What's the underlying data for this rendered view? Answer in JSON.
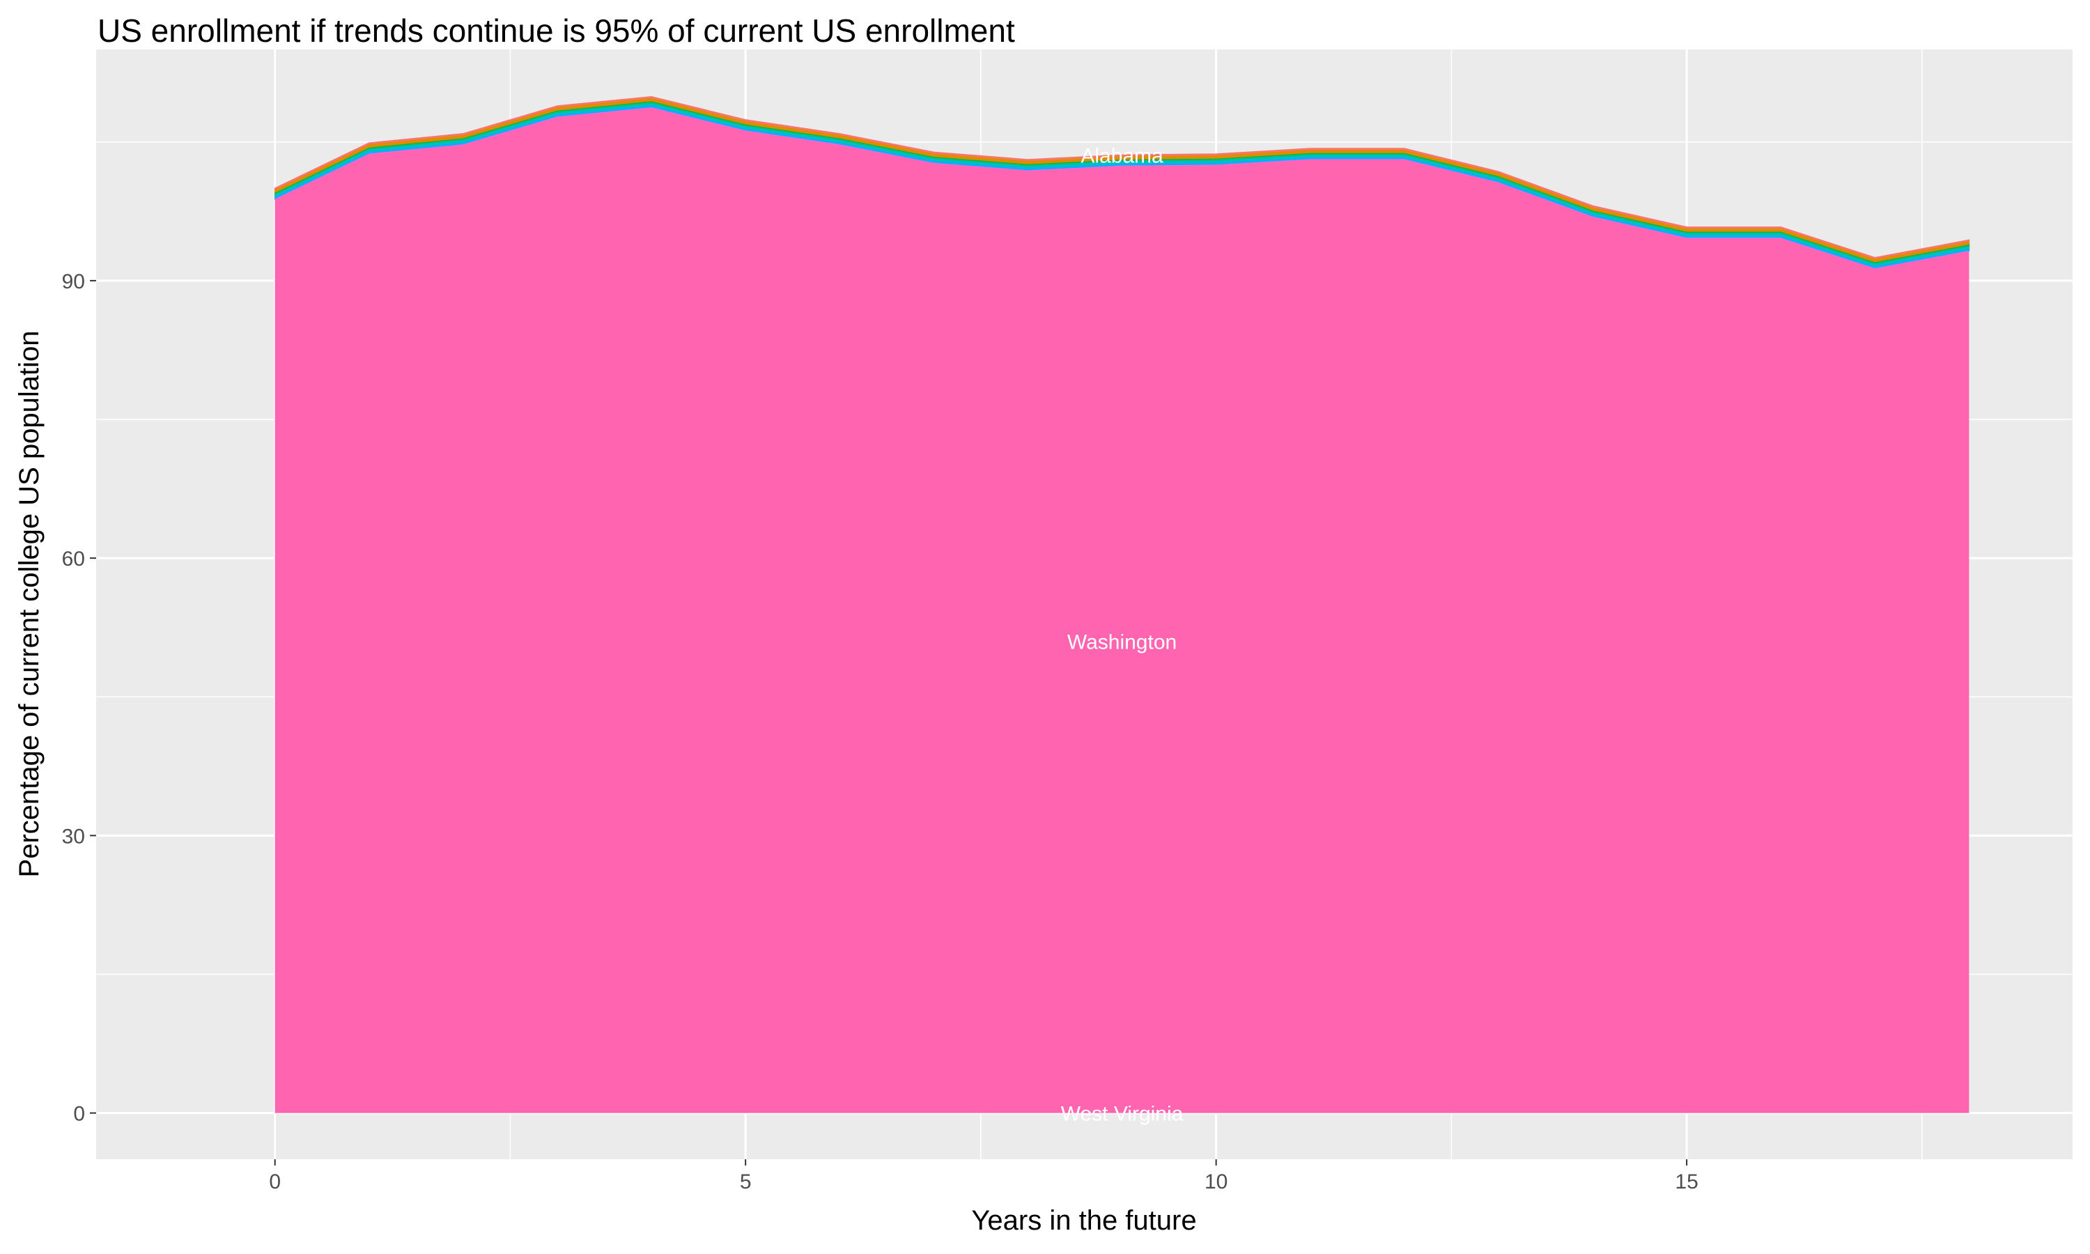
{
  "chart_data": {
    "type": "area",
    "stacked": true,
    "title": "US enrollment if trends continue is 95% of current US enrollment",
    "xlabel": "Years in the future",
    "ylabel": "Percentage of current college US population",
    "x": [
      0,
      1,
      2,
      3,
      4,
      5,
      6,
      7,
      8,
      9,
      10,
      11,
      12,
      13,
      14,
      15,
      16,
      17,
      18
    ],
    "xlim": [
      -1.9,
      19.1
    ],
    "ylim": [
      -5,
      115
    ],
    "xticks": [
      0,
      5,
      10,
      15
    ],
    "yticks": [
      0,
      30,
      60,
      90
    ],
    "grid": true,
    "legend": "none",
    "background": "#EBEBEB",
    "series": [
      {
        "name": "Washington",
        "color": "#FF64B0",
        "values": [
          98.8,
          103.7,
          104.7,
          107.7,
          108.7,
          106.2,
          104.7,
          102.7,
          101.9,
          102.4,
          102.5,
          103.1,
          103.1,
          100.6,
          96.9,
          94.6,
          94.6,
          91.3,
          93.2
        ]
      },
      {
        "color": "#F564E3",
        "values": [
          0.1,
          0.1,
          0.1,
          0.1,
          0.1,
          0.1,
          0.1,
          0.1,
          0.1,
          0.1,
          0.1,
          0.1,
          0.1,
          0.1,
          0.1,
          0.1,
          0.1,
          0.1,
          0.1
        ]
      },
      {
        "color": "#00B0F6",
        "values": [
          0.2,
          0.2,
          0.2,
          0.2,
          0.2,
          0.2,
          0.2,
          0.2,
          0.2,
          0.2,
          0.2,
          0.2,
          0.2,
          0.2,
          0.2,
          0.2,
          0.2,
          0.2,
          0.2
        ]
      },
      {
        "color": "#00BFC4",
        "values": [
          0.2,
          0.2,
          0.2,
          0.2,
          0.2,
          0.2,
          0.2,
          0.2,
          0.2,
          0.2,
          0.2,
          0.2,
          0.2,
          0.2,
          0.2,
          0.2,
          0.2,
          0.2,
          0.2
        ]
      },
      {
        "color": "#00C094",
        "values": [
          0.15,
          0.15,
          0.15,
          0.15,
          0.15,
          0.15,
          0.15,
          0.15,
          0.15,
          0.15,
          0.15,
          0.15,
          0.15,
          0.15,
          0.15,
          0.15,
          0.15,
          0.15,
          0.15
        ]
      },
      {
        "color": "#00BA38",
        "values": [
          0.1,
          0.1,
          0.1,
          0.1,
          0.1,
          0.1,
          0.1,
          0.1,
          0.1,
          0.1,
          0.1,
          0.1,
          0.1,
          0.1,
          0.1,
          0.1,
          0.1,
          0.1,
          0.1
        ]
      },
      {
        "color": "#DE8C00",
        "values": [
          0.35,
          0.35,
          0.35,
          0.35,
          0.35,
          0.35,
          0.35,
          0.35,
          0.35,
          0.35,
          0.35,
          0.35,
          0.35,
          0.35,
          0.35,
          0.35,
          0.35,
          0.35,
          0.35
        ]
      },
      {
        "name": "Alabama",
        "color": "#F8766D",
        "values": [
          0.1,
          0.1,
          0.1,
          0.1,
          0.1,
          0.1,
          0.1,
          0.1,
          0.1,
          0.1,
          0.1,
          0.1,
          0.1,
          0.1,
          0.1,
          0.1,
          0.1,
          0.1,
          0.1
        ]
      }
    ],
    "annotations": [
      {
        "text": "Alabama",
        "x": 9,
        "y": 103.6
      },
      {
        "text": "Washington",
        "x": 9,
        "y": 51
      },
      {
        "text": "West Virginia",
        "x": 9,
        "y": 0
      }
    ]
  }
}
